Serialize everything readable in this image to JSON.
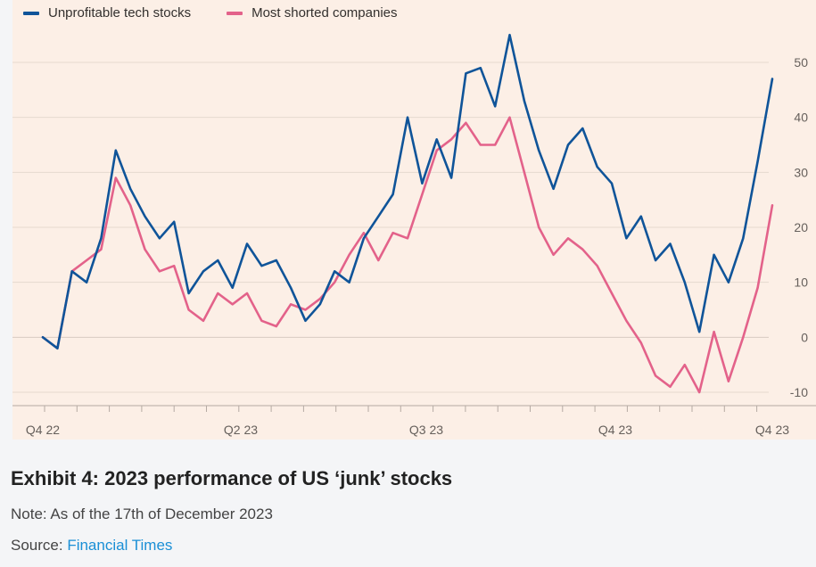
{
  "caption": {
    "title": "Exhibit 4: 2023 performance of US ‘junk’ stocks",
    "note": "Note: As of the 17th of December 2023",
    "source_label": "Source: ",
    "source_link": "Financial Times"
  },
  "colors": {
    "background": "#fcefe6",
    "grid": "#e6d9cf",
    "axis": "#66605c",
    "tech": "#0f5499",
    "shorted": "#e3628a",
    "link": "#1a8fd6"
  },
  "chart_data": {
    "type": "line",
    "title": "",
    "xlabel": "",
    "ylabel": "",
    "ylim": [
      -10,
      50
    ],
    "yticks": [
      50,
      40,
      30,
      20,
      10,
      0,
      -10
    ],
    "xticks": [
      "Q4 22",
      "Q2 23",
      "Q3 23",
      "Q4 23",
      "Q4 23"
    ],
    "legend": "top-left",
    "grid": true,
    "x_dates": [
      "2022-12-30",
      "2023-01-06",
      "2023-01-13",
      "2023-01-20",
      "2023-01-27",
      "2023-02-03",
      "2023-02-10",
      "2023-02-17",
      "2023-02-24",
      "2023-03-03",
      "2023-03-10",
      "2023-03-17",
      "2023-03-24",
      "2023-03-31",
      "2023-04-07",
      "2023-04-14",
      "2023-04-21",
      "2023-04-28",
      "2023-05-05",
      "2023-05-12",
      "2023-05-19",
      "2023-05-26",
      "2023-06-02",
      "2023-06-09",
      "2023-06-16",
      "2023-06-23",
      "2023-06-30",
      "2023-07-07",
      "2023-07-14",
      "2023-07-21",
      "2023-07-28",
      "2023-08-04",
      "2023-08-11",
      "2023-08-18",
      "2023-08-25",
      "2023-09-01",
      "2023-09-08",
      "2023-09-15",
      "2023-09-22",
      "2023-09-29",
      "2023-10-06",
      "2023-10-13",
      "2023-10-20",
      "2023-10-27",
      "2023-11-03",
      "2023-11-10",
      "2023-11-17",
      "2023-11-24",
      "2023-12-01",
      "2023-12-08",
      "2023-12-15"
    ],
    "series": [
      {
        "name": "Unprofitable tech stocks",
        "values": [
          0,
          -2,
          12,
          10,
          18,
          34,
          27,
          22,
          18,
          21,
          8,
          12,
          14,
          9,
          17,
          13,
          14,
          9,
          3,
          6,
          12,
          10,
          18,
          22,
          26,
          40,
          28,
          36,
          29,
          48,
          49,
          42,
          55,
          43,
          34,
          27,
          35,
          38,
          31,
          28,
          18,
          22,
          14,
          17,
          10,
          1,
          15,
          10,
          18,
          32,
          47
        ]
      },
      {
        "name": "Most shorted companies",
        "values": [
          0,
          -2,
          12,
          14,
          16,
          29,
          24,
          16,
          12,
          13,
          5,
          3,
          8,
          6,
          8,
          3,
          2,
          6,
          5,
          7,
          10,
          15,
          19,
          14,
          19,
          18,
          26,
          34,
          36,
          39,
          35,
          35,
          40,
          30,
          20,
          15,
          18,
          16,
          13,
          8,
          3,
          -1,
          -7,
          -9,
          -5,
          -10,
          1,
          -8,
          0,
          9,
          24
        ]
      }
    ]
  }
}
